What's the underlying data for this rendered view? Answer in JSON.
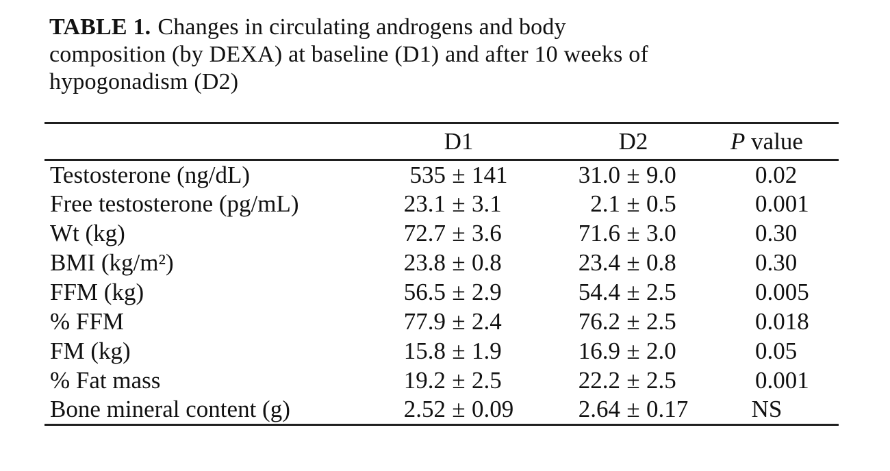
{
  "colors": {
    "text": "#111111",
    "rule": "#1f1f1f",
    "background": "#ffffff"
  },
  "table": {
    "label": "TABLE 1.",
    "caption_lines": [
      "Changes in circulating androgens and body",
      "composition (by DEXA) at baseline (D1) and after 10 weeks of",
      "hypogonadism (D2)"
    ],
    "header": {
      "label_col": "",
      "d1": "D1",
      "d2": "D2",
      "p_italic": "P",
      "p_rest": " value"
    },
    "pm": "±",
    "rows": [
      {
        "label": "Testosterone (ng/dL)",
        "d1_value": "535",
        "d1_error": "141",
        "d2_value": "31.0",
        "d2_error": "9.0",
        "p": "0.02"
      },
      {
        "label": "Free testosterone (pg/mL)",
        "d1_value": "23.1",
        "d1_error": "3.1",
        "d2_value": "2.1",
        "d2_error": "0.5",
        "p": "0.001"
      },
      {
        "label": "Wt (kg)",
        "d1_value": "72.7",
        "d1_error": "3.6",
        "d2_value": "71.6",
        "d2_error": "3.0",
        "p": "0.30"
      },
      {
        "label": "BMI (kg/m²)",
        "d1_value": "23.8",
        "d1_error": "0.8",
        "d2_value": "23.4",
        "d2_error": "0.8",
        "p": "0.30"
      },
      {
        "label": "FFM (kg)",
        "d1_value": "56.5",
        "d1_error": "2.9",
        "d2_value": "54.4",
        "d2_error": "2.5",
        "p": "0.005"
      },
      {
        "label": "% FFM",
        "d1_value": "77.9",
        "d1_error": "2.4",
        "d2_value": "76.2",
        "d2_error": "2.5",
        "p": "0.018"
      },
      {
        "label": "FM (kg)",
        "d1_value": "15.8",
        "d1_error": "1.9",
        "d2_value": "16.9",
        "d2_error": "2.0",
        "p": "0.05"
      },
      {
        "label": "% Fat mass",
        "d1_value": "19.2",
        "d1_error": "2.5",
        "d2_value": "22.2",
        "d2_error": "2.5",
        "p": "0.001"
      },
      {
        "label": "Bone mineral content (g)",
        "d1_value": "2.52",
        "d1_error": "0.09",
        "d2_value": "2.64",
        "d2_error": "0.17",
        "p": "NS"
      }
    ]
  }
}
